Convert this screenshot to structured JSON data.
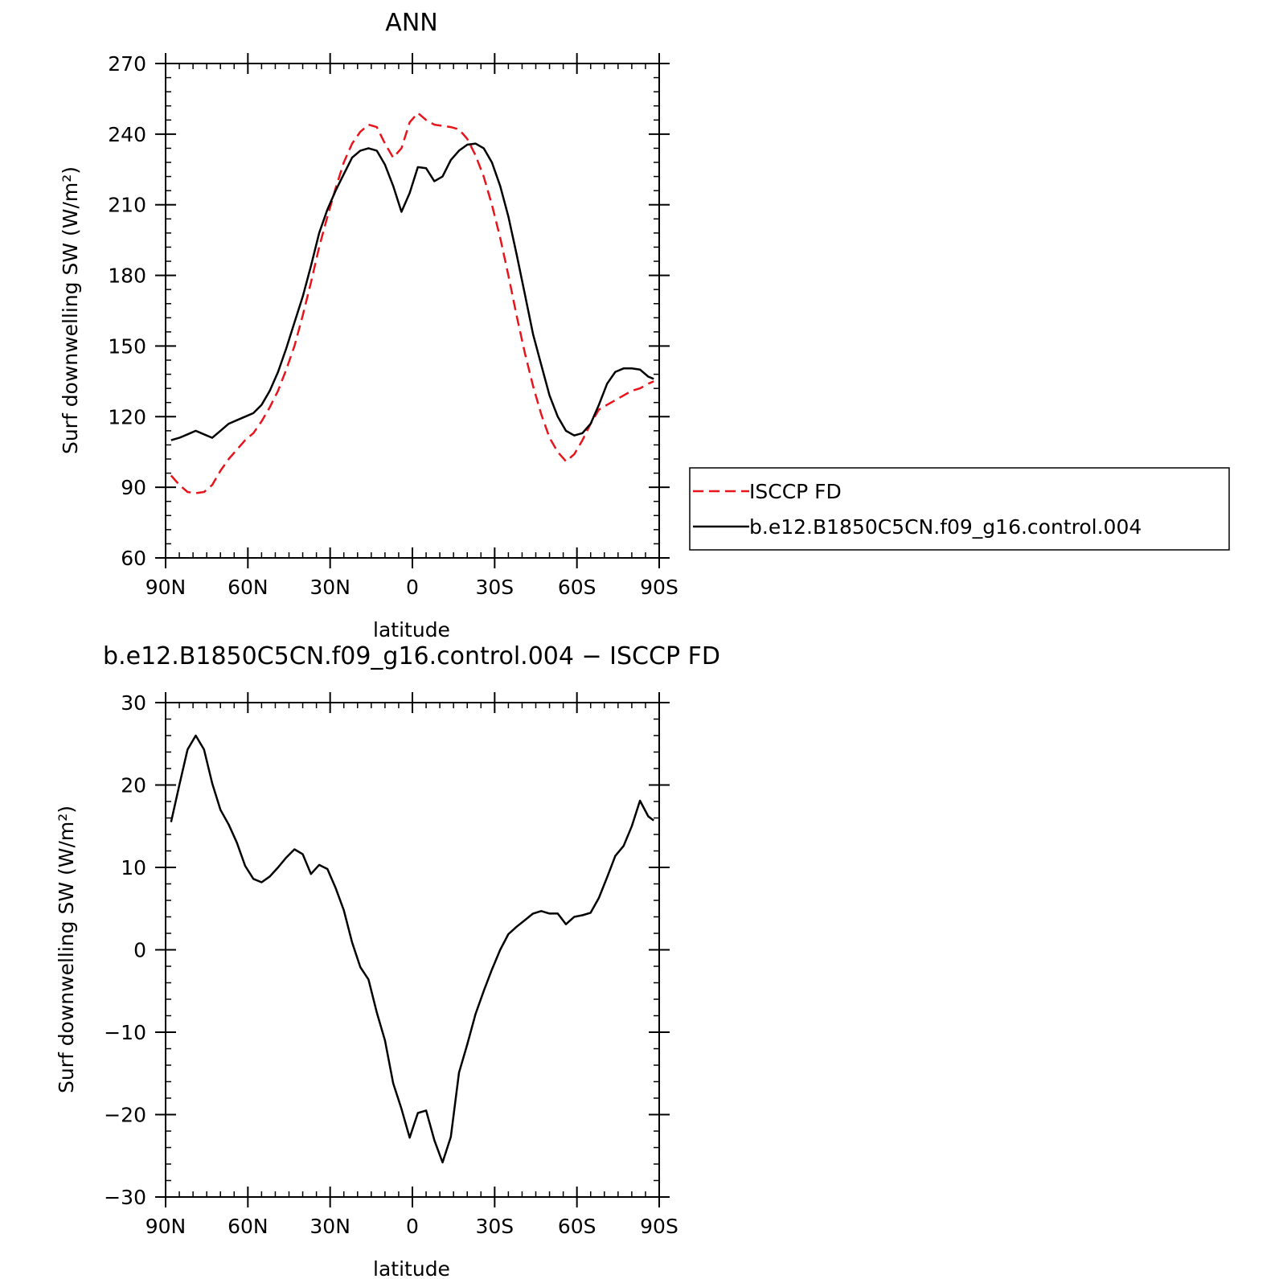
{
  "chart_data": [
    {
      "type": "line",
      "title": "ANN",
      "xlabel": "latitude",
      "ylabel": "Surf downwelling SW (W/m²)",
      "xlim": [
        90,
        -90
      ],
      "ylim": [
        60,
        270
      ],
      "x_ticks": [
        90,
        60,
        30,
        0,
        -30,
        -60,
        -90
      ],
      "x_tick_labels": [
        "90N",
        "60N",
        "30N",
        "0",
        "30S",
        "60S",
        "90S"
      ],
      "y_ticks": [
        60,
        90,
        120,
        150,
        180,
        210,
        240,
        270
      ],
      "y_tick_labels": [
        "60",
        "90",
        "120",
        "150",
        "180",
        "210",
        "240",
        "270"
      ],
      "grid": false,
      "legend_position": "right",
      "series": [
        {
          "name": "ISCCP FD",
          "color": "#e8141c",
          "dash": "dashed",
          "x": [
            88,
            85,
            82,
            79,
            76,
            73,
            70,
            67,
            64,
            61,
            58,
            55,
            52,
            49,
            46,
            43,
            40,
            37,
            34,
            31,
            28,
            25,
            22,
            19,
            16,
            13,
            10,
            7,
            4,
            1,
            -2,
            -5,
            -8,
            -11,
            -14,
            -17,
            -20,
            -23,
            -26,
            -29,
            -32,
            -35,
            -38,
            -41,
            -44,
            -47,
            -50,
            -53,
            -56,
            -59,
            -62,
            -65,
            -68,
            -71,
            -74,
            -77,
            -80,
            -83,
            -86,
            -88
          ],
          "y": [
            95,
            91,
            88,
            87.5,
            88,
            91,
            97,
            102,
            106,
            110,
            113,
            118,
            124,
            131,
            140,
            150,
            163,
            177,
            192,
            205,
            217,
            228,
            236,
            241,
            244,
            243,
            236,
            230,
            234,
            245,
            249,
            246,
            244,
            243.5,
            243,
            242,
            238,
            231,
            222,
            210,
            196,
            180,
            163,
            147,
            133,
            121,
            111,
            105,
            101,
            104,
            110,
            117,
            123,
            125,
            127,
            129,
            131,
            132,
            134,
            135
          ]
        },
        {
          "name": "b.e12.B1850C5CN.f09_g16.control.004",
          "color": "#000000",
          "dash": "solid",
          "x": [
            88,
            85,
            82,
            79,
            76,
            73,
            70,
            67,
            64,
            61,
            58,
            55,
            52,
            49,
            46,
            43,
            40,
            37,
            34,
            31,
            28,
            25,
            22,
            19,
            16,
            13,
            10,
            7,
            4,
            1,
            -2,
            -5,
            -8,
            -11,
            -14,
            -17,
            -20,
            -23,
            -26,
            -29,
            -32,
            -35,
            -38,
            -41,
            -44,
            -47,
            -50,
            -53,
            -56,
            -59,
            -62,
            -65,
            -68,
            -71,
            -74,
            -77,
            -80,
            -83,
            -86,
            -88
          ],
          "y": [
            110,
            111,
            112.5,
            114,
            112.5,
            111,
            114,
            117,
            118.5,
            120,
            121.5,
            125,
            131,
            139,
            149,
            160,
            171,
            184,
            198,
            208,
            216,
            223,
            230,
            233,
            234,
            233,
            227,
            218,
            207,
            215,
            226,
            225.5,
            220,
            222,
            229,
            233,
            235.5,
            236,
            234,
            228,
            218,
            205,
            189,
            172,
            155,
            142,
            129,
            120,
            114,
            112,
            113,
            117,
            125,
            134,
            139,
            140.5,
            140.5,
            140,
            137,
            136
          ]
        }
      ]
    },
    {
      "type": "line",
      "title": "b.e12.B1850C5CN.f09_g16.control.004 − ISCCP FD",
      "xlabel": "latitude",
      "ylabel": "Surf downwelling SW (W/m²)",
      "xlim": [
        90,
        -90
      ],
      "ylim": [
        -30,
        30
      ],
      "x_ticks": [
        90,
        60,
        30,
        0,
        -30,
        -60,
        -90
      ],
      "x_tick_labels": [
        "90N",
        "60N",
        "30N",
        "0",
        "30S",
        "60S",
        "90S"
      ],
      "y_ticks": [
        -30,
        -20,
        -10,
        0,
        10,
        20,
        30
      ],
      "y_tick_labels": [
        "−30",
        "−20",
        "−10",
        "0",
        "10",
        "20",
        "30"
      ],
      "grid": false,
      "series": [
        {
          "color": "#000000",
          "dash": "solid",
          "x": [
            88,
            85,
            82,
            79,
            76,
            73,
            70,
            67,
            64,
            61,
            58,
            55,
            52,
            49,
            46,
            43,
            40,
            37,
            34,
            31,
            28,
            25,
            22,
            19,
            16,
            13,
            10,
            7,
            4,
            1,
            -2,
            -5,
            -8,
            -11,
            -14,
            -17,
            -20,
            -23,
            -26,
            -29,
            -32,
            -35,
            -38,
            -41,
            -44,
            -47,
            -50,
            -53,
            -56,
            -59,
            -62,
            -65,
            -68,
            -71,
            -74,
            -77,
            -80,
            -83,
            -86,
            -88
          ],
          "y": [
            15.5,
            20,
            24.3,
            26,
            24.3,
            20.2,
            17,
            15.2,
            13,
            10.2,
            8.6,
            8.2,
            8.9,
            10,
            11.2,
            12.2,
            11.6,
            9.2,
            10.3,
            9.8,
            7.5,
            4.8,
            0.9,
            -2.1,
            -3.6,
            -7.6,
            -11,
            -16.2,
            -19.3,
            -22.8,
            -19.8,
            -19.5,
            -23.1,
            -25.8,
            -22.7,
            -14.9,
            -11.5,
            -7.8,
            -5,
            -2.4,
            0,
            1.9,
            2.8,
            3.6,
            4.4,
            4.7,
            4.4,
            4.4,
            3.1,
            4,
            4.2,
            4.5,
            6.3,
            8.8,
            11.4,
            12.6,
            15,
            18.1,
            16.2,
            15.7
          ]
        }
      ]
    }
  ]
}
